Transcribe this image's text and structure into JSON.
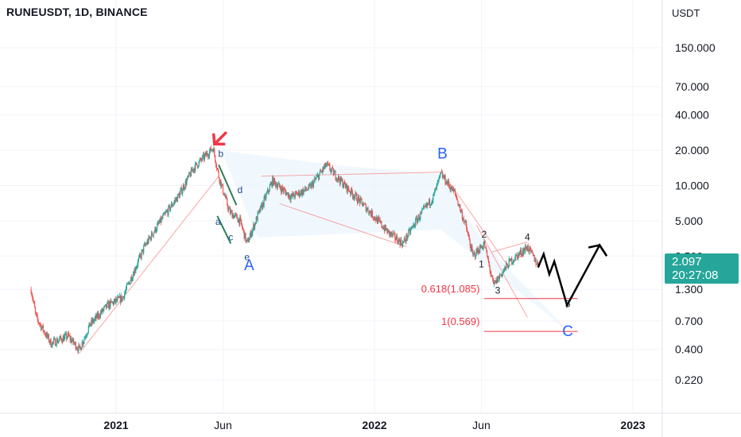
{
  "header": {
    "title": "RUNEUSDT, 1D, BINANCE"
  },
  "axis": {
    "currency": "USDT",
    "y_ticks": [
      "150.000",
      "70.000",
      "40.000",
      "20.000",
      "10.000",
      "5.000",
      "2.500",
      "1.300",
      "0.700",
      "0.400",
      "0.220"
    ],
    "x_ticks": [
      "2021",
      "Jun",
      "2022",
      "Jun",
      "2023"
    ]
  },
  "last_price": {
    "value": "2.097",
    "countdown": "20:27:08"
  },
  "colors": {
    "up": "#26a69a",
    "down": "#ef5350",
    "wave_label": "#2962ff",
    "fib": "#f23645",
    "trend": "#f7a5a5",
    "projection": "#000000",
    "badge": "#26a69a"
  },
  "chart_data": {
    "type": "candlestick",
    "symbol": "RUNEUSDT",
    "interval": "1D",
    "exchange": "BINANCE",
    "y_scale": "log",
    "ylim": [
      0.16,
      230
    ],
    "x_range": [
      "2020-09-01",
      "2023-03-01"
    ],
    "price_path": [
      {
        "date": "2020-09-03",
        "price": 1.3
      },
      {
        "date": "2020-09-10",
        "price": 0.75
      },
      {
        "date": "2020-10-01",
        "price": 0.45
      },
      {
        "date": "2020-10-25",
        "price": 0.52
      },
      {
        "date": "2020-11-10",
        "price": 0.4
      },
      {
        "date": "2020-11-25",
        "price": 0.65
      },
      {
        "date": "2020-12-20",
        "price": 0.95
      },
      {
        "date": "2021-01-10",
        "price": 1.1
      },
      {
        "date": "2021-02-10",
        "price": 3.0
      },
      {
        "date": "2021-03-05",
        "price": 5.0
      },
      {
        "date": "2021-04-01",
        "price": 8.5
      },
      {
        "date": "2021-04-20",
        "price": 14.0
      },
      {
        "date": "2021-05-18",
        "price": 21.0
      },
      {
        "date": "2021-05-26",
        "price": 12.0
      },
      {
        "date": "2021-06-10",
        "price": 6.0
      },
      {
        "date": "2021-06-25",
        "price": 5.0
      },
      {
        "date": "2021-07-05",
        "price": 3.2
      },
      {
        "date": "2021-07-20",
        "price": 5.5
      },
      {
        "date": "2021-08-10",
        "price": 11.0
      },
      {
        "date": "2021-09-05",
        "price": 8.0
      },
      {
        "date": "2021-10-01",
        "price": 9.5
      },
      {
        "date": "2021-10-25",
        "price": 15.0
      },
      {
        "date": "2021-11-20",
        "price": 10.0
      },
      {
        "date": "2021-12-20",
        "price": 6.5
      },
      {
        "date": "2022-01-20",
        "price": 4.0
      },
      {
        "date": "2022-02-10",
        "price": 3.2
      },
      {
        "date": "2022-03-01",
        "price": 5.0
      },
      {
        "date": "2022-03-25",
        "price": 8.0
      },
      {
        "date": "2022-04-05",
        "price": 12.5
      },
      {
        "date": "2022-04-25",
        "price": 8.5
      },
      {
        "date": "2022-05-10",
        "price": 4.5
      },
      {
        "date": "2022-05-20",
        "price": 2.5
      },
      {
        "date": "2022-06-05",
        "price": 3.2
      },
      {
        "date": "2022-06-18",
        "price": 1.4
      },
      {
        "date": "2022-07-10",
        "price": 2.2
      },
      {
        "date": "2022-08-05",
        "price": 3.0
      },
      {
        "date": "2022-08-20",
        "price": 2.097
      }
    ],
    "wave_labels": [
      {
        "text": "a",
        "date": "2021-05-25",
        "price": 4.6
      },
      {
        "text": "b",
        "date": "2021-05-29",
        "price": 17.5
      },
      {
        "text": "c",
        "date": "2021-06-12",
        "price": 3.4
      },
      {
        "text": "d",
        "date": "2021-06-25",
        "price": 8.6
      },
      {
        "text": "e",
        "date": "2021-07-05",
        "price": 2.3
      },
      {
        "text": "A",
        "date": "2021-07-08",
        "price": 1.9
      },
      {
        "text": "B",
        "date": "2022-04-07",
        "price": 17.0
      },
      {
        "text": "1",
        "date": "2022-06-01",
        "price": 2.0
      },
      {
        "text": "2",
        "date": "2022-06-05",
        "price": 3.6
      },
      {
        "text": "3",
        "date": "2022-06-24",
        "price": 1.2
      },
      {
        "text": "4",
        "date": "2022-08-05",
        "price": 3.4
      },
      {
        "text": "5",
        "date": "2022-10-01",
        "price": 0.92
      },
      {
        "text": "C",
        "date": "2022-10-01",
        "price": 0.52
      }
    ],
    "fib_levels": [
      {
        "label": "0.618(1.085)",
        "price": 1.085
      },
      {
        "label": "1(0.569)",
        "price": 0.569
      }
    ],
    "projection_path": [
      {
        "date": "2022-08-20",
        "price": 2.0
      },
      {
        "date": "2022-08-28",
        "price": 2.6
      },
      {
        "date": "2022-09-05",
        "price": 1.75
      },
      {
        "date": "2022-09-12",
        "price": 2.25
      },
      {
        "date": "2022-09-30",
        "price": 0.95
      },
      {
        "date": "2022-11-15",
        "price": 3.1
      },
      {
        "date": "2022-11-25",
        "price": 2.5
      }
    ]
  }
}
